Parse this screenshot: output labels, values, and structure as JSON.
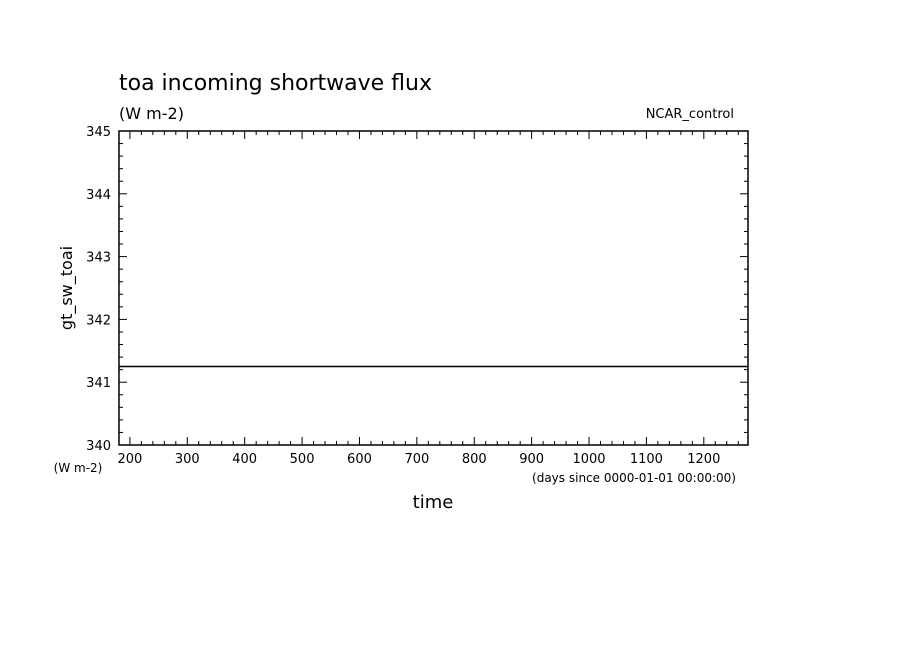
{
  "chart_data": {
    "type": "line",
    "title": "toa incoming shortwave flux",
    "subtitle": "(W m-2)",
    "run_label": "NCAR_control",
    "xlabel": "time",
    "x_units": "(days since 0000-01-01 00:00:00)",
    "ylabel": "gt_sw_toai",
    "y_units": "(W m-2)",
    "xlim": [
      181,
      1277
    ],
    "ylim": [
      340,
      345
    ],
    "x_ticks": [
      200,
      300,
      400,
      500,
      600,
      700,
      800,
      900,
      1000,
      1100,
      1200
    ],
    "y_ticks": [
      340,
      341,
      342,
      343,
      344,
      345
    ],
    "series": [
      {
        "x": [
          181,
          1277
        ],
        "y": [
          341.25,
          341.25
        ]
      }
    ],
    "grid": false,
    "colors": {
      "line": "#000000",
      "background": "#ffffff"
    }
  }
}
